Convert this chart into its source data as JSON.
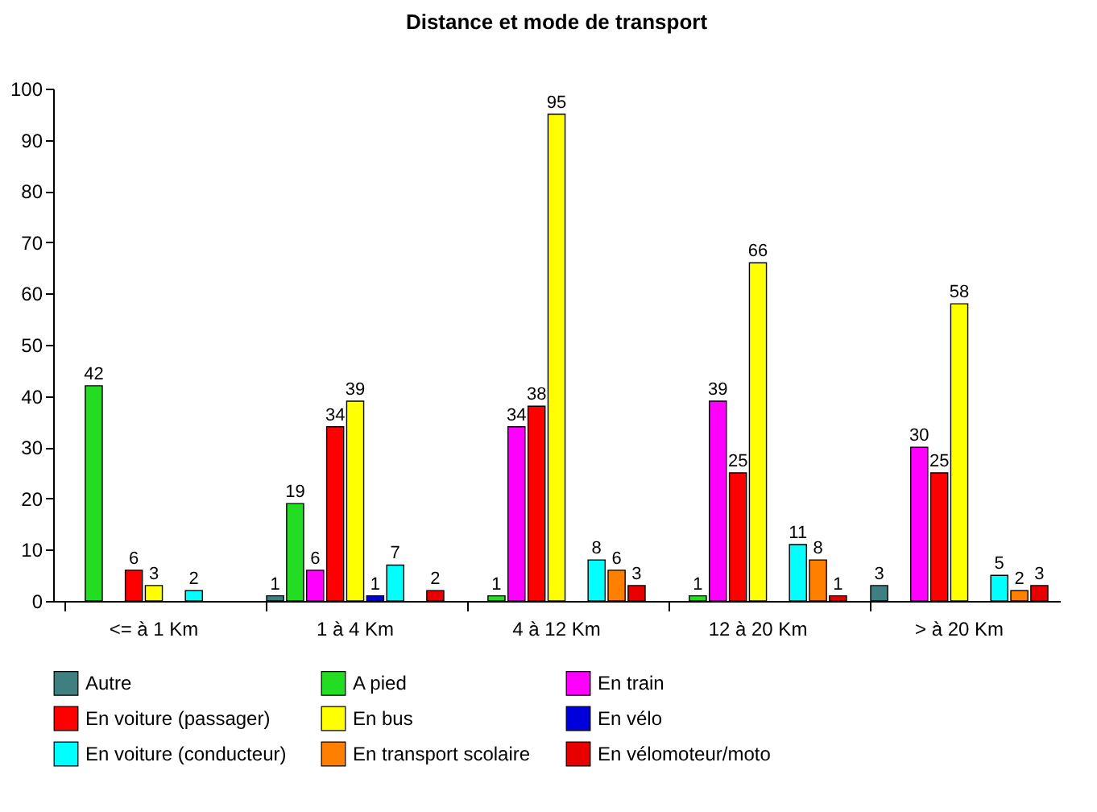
{
  "chart_data": {
    "type": "bar",
    "title": "Distance et mode de transport",
    "categories": [
      "<= à 1 Km",
      "1 à 4 Km",
      "4 à 12 Km",
      "12 à 20 Km",
      "> à 20 Km"
    ],
    "series": [
      {
        "name": "Autre",
        "color": "#3f7f7f",
        "values": [
          null,
          1,
          null,
          null,
          3
        ]
      },
      {
        "name": "A pied",
        "color": "#22dd22",
        "values": [
          42,
          19,
          1,
          1,
          null
        ]
      },
      {
        "name": "En train",
        "color": "#ff00ff",
        "values": [
          null,
          6,
          34,
          39,
          30
        ]
      },
      {
        "name": "En voiture (passager)",
        "color": "#ff0000",
        "values": [
          6,
          34,
          38,
          25,
          25
        ]
      },
      {
        "name": "En bus",
        "color": "#ffff00",
        "values": [
          3,
          39,
          95,
          66,
          58
        ]
      },
      {
        "name": "En vélo",
        "color": "#0000dd",
        "values": [
          null,
          1,
          null,
          null,
          null
        ]
      },
      {
        "name": "En voiture (conducteur)",
        "color": "#00ffff",
        "values": [
          2,
          7,
          8,
          11,
          5
        ]
      },
      {
        "name": "En transport scolaire",
        "color": "#ff7f00",
        "values": [
          null,
          null,
          6,
          8,
          2
        ]
      },
      {
        "name": "En vélomoteur/moto",
        "color": "#e80000",
        "values": [
          null,
          2,
          3,
          1,
          3
        ]
      }
    ],
    "ylim": [
      0,
      100
    ],
    "yticks": [
      0,
      10,
      20,
      30,
      40,
      50,
      60,
      70,
      80,
      90,
      100
    ],
    "grid": false,
    "legend": "bottom",
    "data_labels": true
  }
}
